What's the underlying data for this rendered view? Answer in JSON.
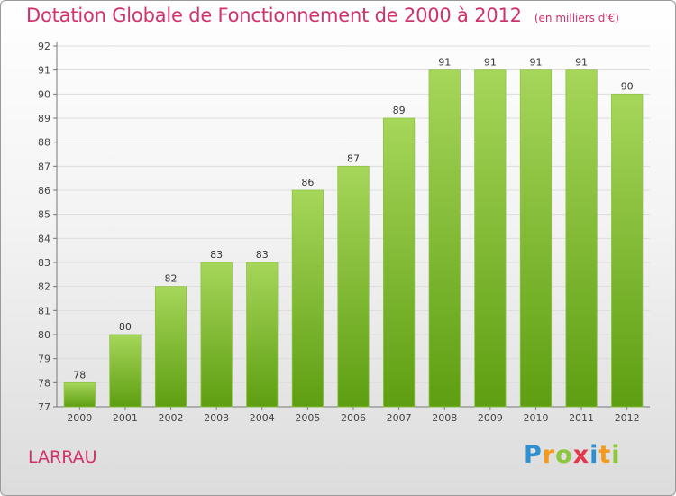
{
  "header": {
    "title": "Dotation Globale de Fonctionnement de 2000 à 2012",
    "unit": "(en milliers d'€)"
  },
  "footer": {
    "commune": "LARRAU",
    "logo": "Proxiti"
  },
  "colors": {
    "title": "#d1326b",
    "bar_top": "#a6d65a",
    "bar_bottom": "#5e9e12",
    "grid": "#dddddd"
  },
  "chart_data": {
    "type": "bar",
    "title": "Dotation Globale de Fonctionnement de 2000 à 2012",
    "subtitle": "(en milliers d'€)",
    "xlabel": "",
    "ylabel": "",
    "categories": [
      "2000",
      "2001",
      "2002",
      "2003",
      "2004",
      "2005",
      "2006",
      "2007",
      "2008",
      "2009",
      "2010",
      "2011",
      "2012"
    ],
    "values": [
      78,
      80,
      82,
      83,
      83,
      86,
      87,
      89,
      91,
      91,
      91,
      91,
      90
    ],
    "ylim": [
      77,
      92
    ],
    "yticks": [
      77,
      78,
      79,
      80,
      81,
      82,
      83,
      84,
      85,
      86,
      87,
      88,
      89,
      90,
      91,
      92
    ],
    "grid": true,
    "legend": "none"
  }
}
